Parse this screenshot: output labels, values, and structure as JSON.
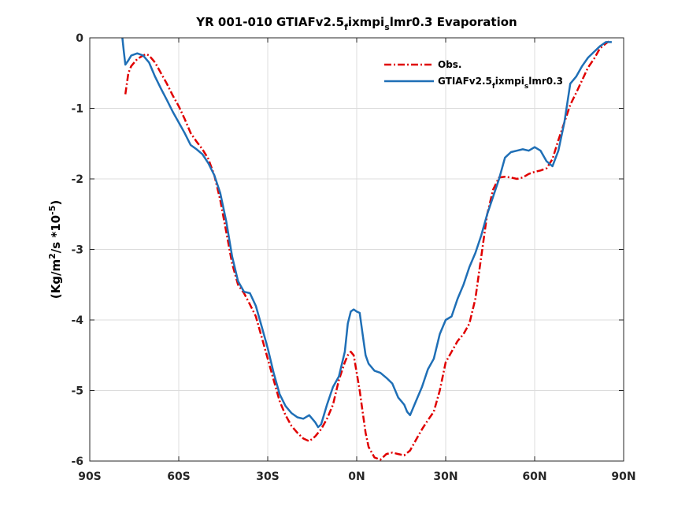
{
  "chart_data": {
    "type": "line",
    "title": "YR 001-010 GTIAFv2.5_fixmpi_slmr0.3 Evaporation",
    "xlabel": "",
    "ylabel": "(Kg/m^2/s *10^-5)",
    "xlim": [
      -90,
      90
    ],
    "ylim": [
      -6,
      0
    ],
    "x_ticks": [
      -90,
      -60,
      -30,
      0,
      30,
      60,
      90
    ],
    "x_tick_labels": [
      "90S",
      "60S",
      "30S",
      "0N",
      "30N",
      "60N",
      "90N"
    ],
    "y_ticks": [
      0,
      -1,
      -2,
      -3,
      -4,
      -5,
      -6
    ],
    "y_tick_labels": [
      "0",
      "-1",
      "-2",
      "-3",
      "-4",
      "-5",
      "-6"
    ],
    "grid": true,
    "legend_position": "top-right",
    "series": [
      {
        "name": "Obs.",
        "color": "#e00000",
        "style": "dash-dot",
        "x": [
          -78,
          -77,
          -76,
          -74,
          -72,
          -71,
          -70,
          -68,
          -66,
          -64,
          -62,
          -60,
          -58,
          -56,
          -54,
          -52,
          -50,
          -48,
          -46,
          -44,
          -42,
          -40,
          -38,
          -36,
          -34,
          -32,
          -30,
          -28,
          -26,
          -24,
          -22,
          -20,
          -18,
          -16,
          -14,
          -13,
          -12,
          -10,
          -8,
          -6,
          -4,
          -3,
          -2,
          -1,
          0,
          1,
          2,
          3,
          4,
          6,
          8,
          10,
          12,
          14,
          16,
          18,
          20,
          22,
          24,
          26,
          28,
          30,
          32,
          34,
          36,
          38,
          40,
          42,
          44,
          46,
          48,
          50,
          52,
          54,
          56,
          58,
          60,
          62,
          64,
          66,
          68,
          70,
          72,
          74,
          76,
          78,
          80,
          82,
          84,
          85
        ],
        "y": [
          -0.8,
          -0.5,
          -0.4,
          -0.3,
          -0.25,
          -0.23,
          -0.25,
          -0.35,
          -0.5,
          -0.65,
          -0.82,
          -0.97,
          -1.15,
          -1.35,
          -1.47,
          -1.58,
          -1.72,
          -1.95,
          -2.3,
          -2.75,
          -3.2,
          -3.5,
          -3.62,
          -3.78,
          -3.95,
          -4.25,
          -4.55,
          -4.85,
          -5.15,
          -5.35,
          -5.5,
          -5.6,
          -5.68,
          -5.72,
          -5.65,
          -5.6,
          -5.55,
          -5.4,
          -5.2,
          -4.85,
          -4.6,
          -4.5,
          -4.45,
          -4.5,
          -4.75,
          -5.0,
          -5.3,
          -5.6,
          -5.8,
          -5.95,
          -5.98,
          -5.9,
          -5.88,
          -5.9,
          -5.92,
          -5.85,
          -5.7,
          -5.55,
          -5.42,
          -5.3,
          -5.0,
          -4.6,
          -4.45,
          -4.3,
          -4.2,
          -4.05,
          -3.7,
          -3.1,
          -2.5,
          -2.15,
          -1.98,
          -1.97,
          -1.98,
          -2.0,
          -1.98,
          -1.93,
          -1.9,
          -1.88,
          -1.85,
          -1.72,
          -1.45,
          -1.2,
          -0.95,
          -0.78,
          -0.6,
          -0.42,
          -0.3,
          -0.15,
          -0.08,
          -0.05
        ]
      },
      {
        "name": "GTIAFv2.5_fixmpi_slmr0.3",
        "color": "#1f6fb6",
        "style": "solid",
        "x": [
          -79,
          -78.5,
          -78,
          -77,
          -76,
          -74,
          -72,
          -70,
          -68,
          -66,
          -64,
          -62,
          -60,
          -58,
          -56,
          -54,
          -52,
          -50,
          -48,
          -46,
          -44,
          -42,
          -40,
          -38,
          -36,
          -34,
          -32,
          -30,
          -28,
          -26,
          -24,
          -22,
          -20,
          -18,
          -16,
          -14,
          -13,
          -12,
          -10,
          -8,
          -6,
          -4,
          -3,
          -2,
          -1,
          0,
          1,
          2,
          3,
          4,
          6,
          8,
          10,
          12,
          14,
          16,
          17,
          18,
          20,
          22,
          24,
          26,
          28,
          30,
          32,
          34,
          36,
          38,
          40,
          42,
          44,
          46,
          48,
          50,
          52,
          54,
          56,
          58,
          60,
          62,
          64,
          66,
          68,
          70,
          72,
          74,
          76,
          78,
          80,
          82,
          84,
          86
        ],
        "y": [
          0,
          -0.2,
          -0.38,
          -0.32,
          -0.25,
          -0.22,
          -0.25,
          -0.35,
          -0.55,
          -0.72,
          -0.88,
          -1.05,
          -1.2,
          -1.35,
          -1.52,
          -1.58,
          -1.65,
          -1.78,
          -1.95,
          -2.2,
          -2.6,
          -3.1,
          -3.45,
          -3.6,
          -3.62,
          -3.8,
          -4.1,
          -4.4,
          -4.75,
          -5.05,
          -5.22,
          -5.32,
          -5.38,
          -5.4,
          -5.35,
          -5.45,
          -5.52,
          -5.48,
          -5.2,
          -4.95,
          -4.8,
          -4.45,
          -4.05,
          -3.88,
          -3.85,
          -3.88,
          -3.9,
          -4.2,
          -4.5,
          -4.62,
          -4.72,
          -4.75,
          -4.82,
          -4.9,
          -5.1,
          -5.2,
          -5.3,
          -5.35,
          -5.15,
          -4.95,
          -4.7,
          -4.55,
          -4.2,
          -4.0,
          -3.95,
          -3.7,
          -3.5,
          -3.25,
          -3.05,
          -2.8,
          -2.5,
          -2.25,
          -2.0,
          -1.7,
          -1.62,
          -1.6,
          -1.58,
          -1.6,
          -1.55,
          -1.6,
          -1.75,
          -1.82,
          -1.6,
          -1.2,
          -0.65,
          -0.55,
          -0.4,
          -0.28,
          -0.2,
          -0.12,
          -0.06,
          -0.06
        ]
      }
    ]
  }
}
